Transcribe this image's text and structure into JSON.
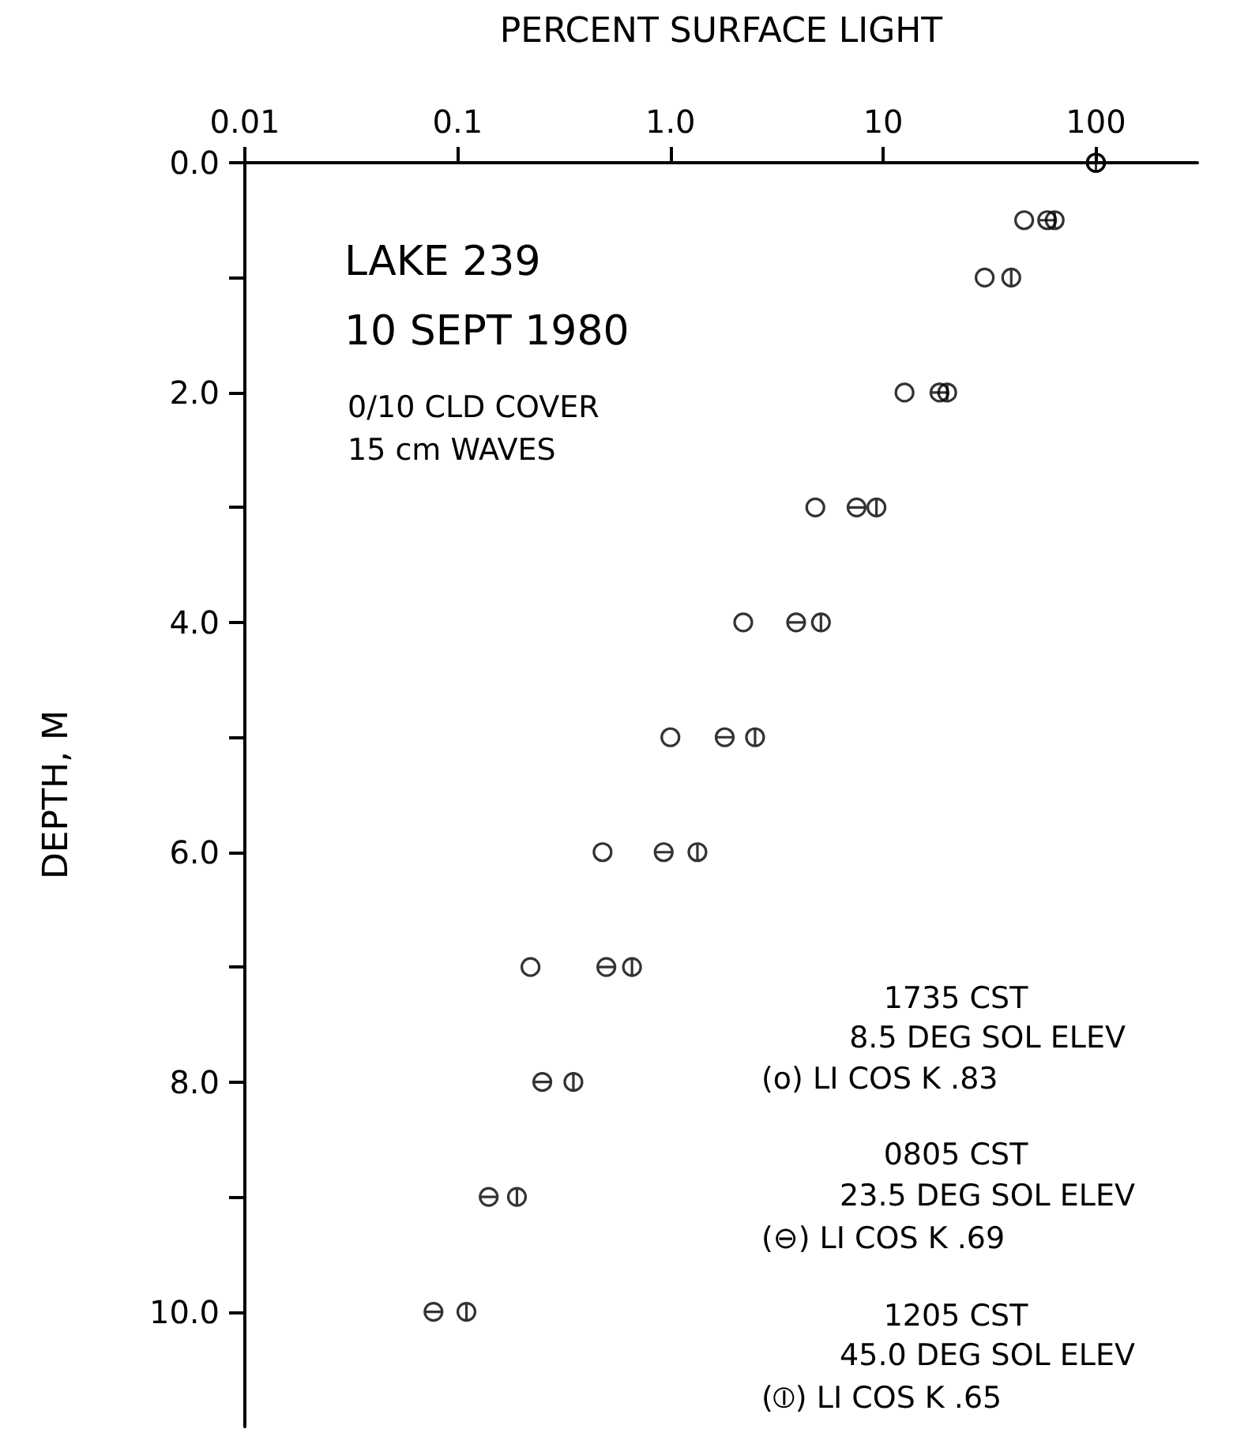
{
  "chart_data": {
    "type": "scatter",
    "xlabel": "PERCENT SURFACE LIGHT",
    "ylabel": "DEPTH, M",
    "log": "x",
    "grid": false,
    "xlim": [
      0.01,
      300
    ],
    "xticks": [
      0.01,
      0.1,
      {
        "value": 1,
        "label": "1.0"
      },
      10,
      100
    ],
    "ylim": [
      11,
      0
    ],
    "yticks": [
      {
        "value": 0,
        "label": "0.0"
      },
      {
        "value": 1,
        "label": null
      },
      {
        "value": 2,
        "label": "2.0"
      },
      {
        "value": 3,
        "label": null
      },
      {
        "value": 4,
        "label": "4.0"
      },
      {
        "value": 5,
        "label": null
      },
      {
        "value": 6,
        "label": "6.0"
      },
      {
        "value": 7,
        "label": null
      },
      {
        "value": 8,
        "label": "8.0"
      },
      {
        "value": 9,
        "label": null
      },
      {
        "value": 10,
        "label": "10.0"
      }
    ],
    "series": [
      {
        "color": "#000000",
        "x": [
          100,
          46,
          30,
          12.6,
          4.8,
          2.2,
          1.0,
          0.48,
          0.22
        ],
        "values": [
          0,
          0.5,
          1,
          2,
          3,
          4,
          5,
          6,
          7
        ]
      },
      {
        "color": "#000000",
        "x": [
          100,
          59,
          18.4,
          7.5,
          3.9,
          1.8,
          0.93,
          0.5,
          0.25,
          0.14,
          0.077
        ],
        "values": [
          0,
          0.5,
          2,
          3,
          4,
          5,
          6,
          7,
          8,
          9,
          10
        ]
      },
      {
        "color": "#000000",
        "x": [
          100,
          64,
          40,
          20,
          9.3,
          5.1,
          2.5,
          1.34,
          0.66,
          0.35,
          0.19,
          0.11
        ],
        "values": [
          0,
          0.5,
          1,
          2,
          3,
          4,
          5,
          6,
          7,
          8,
          9,
          10
        ]
      }
    ],
    "annotations": [
      "LAKE 239",
      "10 SEPT 1980",
      "0/10 CLD COVER",
      "15 cm WAVES",
      "1735 CST",
      "8.5 DEG SOL ELEV",
      "(o) LI COS K .83",
      "0805 CST",
      "23.5 DEG SOL ELEV",
      "(⊖) LI COS K .69",
      "1205 CST",
      "45.0 DEG SOL ELEV",
      "(⦶) LI COS K .65"
    ]
  }
}
